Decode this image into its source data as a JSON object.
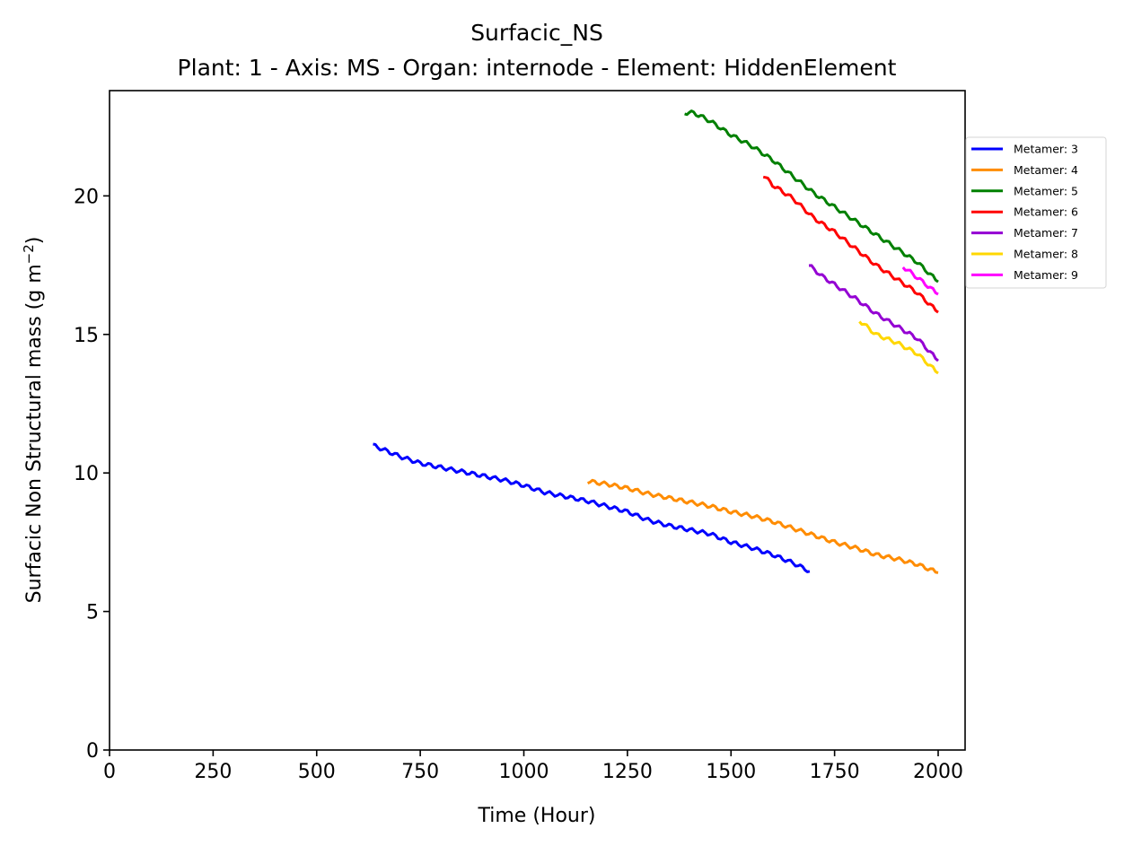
{
  "colors": {
    "Metamer: 3": "#0000ff",
    "Metamer: 4": "#ff8c00",
    "Metamer: 5": "#008000",
    "Metamer: 6": "#ff0000",
    "Metamer: 7": "#9400d3",
    "Metamer: 8": "#ffd700",
    "Metamer: 9": "#ff00ff"
  },
  "chart_data": {
    "type": "line",
    "title": "Surfacic_NS",
    "subtitle": "Plant: 1 - Axis: MS - Organ: internode - Element: HiddenElement",
    "xlabel": "Time (Hour)",
    "ylabel_main": "Surfacic Non Structural mass (g m",
    "ylabel_sup": "−2",
    "ylabel_close": ")",
    "xlim": [
      0,
      2065
    ],
    "ylim": [
      0,
      23.8
    ],
    "x_ticks": [
      0,
      250,
      500,
      750,
      1000,
      1250,
      1500,
      1750,
      2000
    ],
    "x_tick_labels": [
      "0",
      "250",
      "500",
      "750",
      "1000",
      "1250",
      "1500",
      "1750",
      "2000"
    ],
    "y_ticks": [
      0,
      5,
      10,
      15,
      20
    ],
    "y_tick_labels": [
      "0",
      "5",
      "10",
      "15",
      "20"
    ],
    "grid": false,
    "legend_position": "outside-right",
    "series": [
      {
        "name": "Metamer: 3",
        "color": "#0000ff",
        "points": [
          [
            636,
            11.0
          ],
          [
            700,
            10.6
          ],
          [
            750,
            10.35
          ],
          [
            800,
            10.2
          ],
          [
            850,
            10.05
          ],
          [
            900,
            9.9
          ],
          [
            950,
            9.75
          ],
          [
            1000,
            9.55
          ],
          [
            1050,
            9.3
          ],
          [
            1100,
            9.15
          ],
          [
            1150,
            9.0
          ],
          [
            1200,
            8.8
          ],
          [
            1250,
            8.6
          ],
          [
            1300,
            8.3
          ],
          [
            1350,
            8.1
          ],
          [
            1400,
            7.95
          ],
          [
            1450,
            7.8
          ],
          [
            1500,
            7.5
          ],
          [
            1550,
            7.3
          ],
          [
            1600,
            7.05
          ],
          [
            1650,
            6.75
          ],
          [
            1690,
            6.45
          ]
        ]
      },
      {
        "name": "Metamer: 4",
        "color": "#ff8c00",
        "points": [
          [
            1154,
            9.7
          ],
          [
            1200,
            9.6
          ],
          [
            1250,
            9.45
          ],
          [
            1300,
            9.25
          ],
          [
            1350,
            9.1
          ],
          [
            1400,
            8.95
          ],
          [
            1450,
            8.8
          ],
          [
            1500,
            8.6
          ],
          [
            1550,
            8.45
          ],
          [
            1600,
            8.25
          ],
          [
            1650,
            8.0
          ],
          [
            1700,
            7.75
          ],
          [
            1750,
            7.5
          ],
          [
            1800,
            7.3
          ],
          [
            1850,
            7.05
          ],
          [
            1900,
            6.9
          ],
          [
            1950,
            6.7
          ],
          [
            2000,
            6.4
          ]
        ]
      },
      {
        "name": "Metamer: 5",
        "color": "#008000",
        "points": [
          [
            1388,
            23.0
          ],
          [
            1410,
            23.0
          ],
          [
            1450,
            22.7
          ],
          [
            1500,
            22.2
          ],
          [
            1550,
            21.8
          ],
          [
            1600,
            21.3
          ],
          [
            1650,
            20.7
          ],
          [
            1700,
            20.1
          ],
          [
            1750,
            19.6
          ],
          [
            1800,
            19.1
          ],
          [
            1850,
            18.6
          ],
          [
            1900,
            18.1
          ],
          [
            1950,
            17.6
          ],
          [
            2000,
            16.9
          ]
        ]
      },
      {
        "name": "Metamer: 6",
        "color": "#ff0000",
        "points": [
          [
            1578,
            20.75
          ],
          [
            1600,
            20.4
          ],
          [
            1650,
            19.9
          ],
          [
            1700,
            19.2
          ],
          [
            1750,
            18.7
          ],
          [
            1800,
            18.1
          ],
          [
            1850,
            17.5
          ],
          [
            1900,
            17.0
          ],
          [
            1950,
            16.5
          ],
          [
            2000,
            15.8
          ]
        ]
      },
      {
        "name": "Metamer: 7",
        "color": "#9400d3",
        "points": [
          [
            1688,
            17.5
          ],
          [
            1720,
            17.1
          ],
          [
            1750,
            16.8
          ],
          [
            1800,
            16.3
          ],
          [
            1850,
            15.75
          ],
          [
            1900,
            15.3
          ],
          [
            1950,
            14.85
          ],
          [
            2000,
            14.05
          ]
        ]
      },
      {
        "name": "Metamer: 8",
        "color": "#ffd700",
        "points": [
          [
            1810,
            15.5
          ],
          [
            1850,
            15.0
          ],
          [
            1900,
            14.7
          ],
          [
            1950,
            14.3
          ],
          [
            2000,
            13.6
          ]
        ]
      },
      {
        "name": "Metamer: 9",
        "color": "#ff00ff",
        "points": [
          [
            1915,
            17.45
          ],
          [
            1950,
            17.05
          ],
          [
            1975,
            16.75
          ],
          [
            2000,
            16.45
          ]
        ]
      }
    ]
  }
}
